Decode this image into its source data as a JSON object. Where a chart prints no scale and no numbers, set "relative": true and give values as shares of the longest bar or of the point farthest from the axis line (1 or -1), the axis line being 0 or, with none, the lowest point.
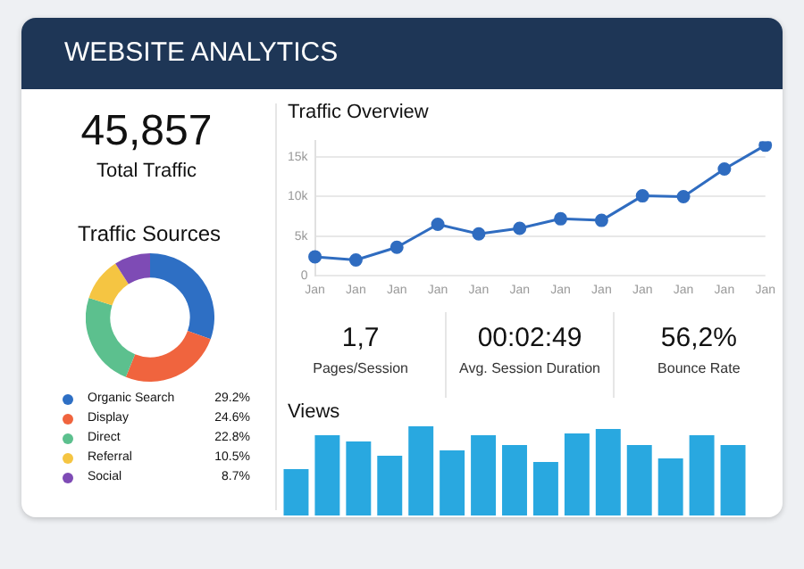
{
  "chart_data": [
    {
      "type": "other",
      "title": "WEBSITE ANALYTICS",
      "annotations": [
        "45,857",
        "Total Traffic"
      ]
    },
    {
      "type": "line",
      "title": "Traffic Overview",
      "categories": [
        "Jan",
        "Jan",
        "Jan",
        "Jan",
        "Jan",
        "Jan",
        "Jan",
        "Jan",
        "Jan",
        "Jan",
        "Jan",
        "Jan"
      ],
      "values": [
        2400,
        2000,
        3600,
        6500,
        5300,
        6000,
        7200,
        7000,
        10100,
        10000,
        13500,
        16500
      ],
      "color": "#2f6cc0",
      "ylim": [
        0,
        17000
      ],
      "yticks": [
        0,
        {
          "value": 5000,
          "label": "5k"
        },
        {
          "value": 10000,
          "label": "10k"
        },
        {
          "value": 15000,
          "label": "15k"
        }
      ],
      "grid": "y",
      "marker": "circle"
    },
    {
      "type": "donut",
      "title": "Traffic Sources",
      "categories": [
        "Organic Search",
        "Display",
        "Direct",
        "Referral",
        "Social"
      ],
      "values": [
        29.2,
        24.6,
        22.8,
        10.5,
        8.7
      ],
      "value_labels": [
        "29.2%",
        "24.6%",
        "22.8%",
        "10.5%",
        "8.7%"
      ],
      "colors": [
        "#2e6fc4",
        "#f0643e",
        "#5cc08e",
        "#f5c542",
        "#7e4bb5"
      ],
      "legend": "bottom"
    },
    {
      "type": "other",
      "annotations": [
        "1,7",
        "Pages/Session",
        "00:02:49",
        "Avg. Session Duration",
        "56,2%",
        "Bounce Rate"
      ]
    },
    {
      "type": "bar",
      "title": "Views",
      "relative": true,
      "categories": [
        null,
        null,
        null,
        null,
        null,
        null,
        null,
        null,
        null,
        null,
        null,
        null,
        null,
        null,
        null
      ],
      "values": [
        0.52,
        0.9,
        0.83,
        0.67,
        1,
        0.73,
        0.9,
        0.79,
        0.6,
        0.92,
        0.97,
        0.79,
        0.64,
        0.9,
        0.79
      ],
      "color": "#29a8e0"
    }
  ]
}
